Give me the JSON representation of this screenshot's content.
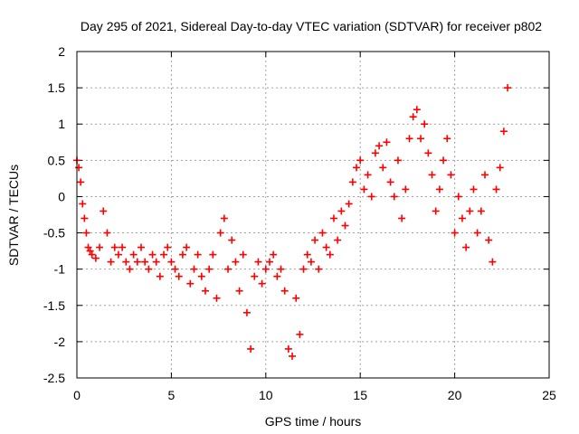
{
  "chart_data": {
    "type": "scatter",
    "title": "Day 295 of 2021, Sidereal Day-to-day VTEC variation (SDTVAR) for receiver p802",
    "xlabel": "GPS time / hours",
    "ylabel": "SDTVAR / TECUs",
    "xlim": [
      0,
      25
    ],
    "ylim": [
      -2.5,
      2
    ],
    "xticks": [
      0,
      5,
      10,
      15,
      20,
      25
    ],
    "yticks": [
      -2.5,
      -2,
      -1.5,
      -1,
      -0.5,
      0,
      0.5,
      1,
      1.5,
      2
    ],
    "xtick_labels": [
      "0",
      "5",
      "10",
      "15",
      "20",
      "25"
    ],
    "ytick_labels": [
      "-2.5",
      "-2",
      "-1.5",
      "-1",
      "-0.5",
      "0",
      "0.5",
      "1",
      "1.5",
      "2"
    ],
    "grid": true,
    "marker": "plus",
    "color": "#ff0000",
    "series": [
      {
        "name": "SDTVAR",
        "x": [
          0.0,
          0.1,
          0.2,
          0.3,
          0.4,
          0.5,
          0.6,
          0.7,
          0.8,
          1.0,
          1.2,
          1.4,
          1.6,
          1.8,
          2.0,
          2.2,
          2.4,
          2.6,
          2.8,
          3.0,
          3.2,
          3.4,
          3.6,
          3.8,
          4.0,
          4.2,
          4.4,
          4.6,
          4.8,
          5.0,
          5.2,
          5.4,
          5.6,
          5.8,
          6.0,
          6.2,
          6.4,
          6.6,
          6.8,
          7.0,
          7.2,
          7.4,
          7.6,
          7.8,
          8.0,
          8.2,
          8.4,
          8.6,
          8.8,
          9.0,
          9.2,
          9.4,
          9.6,
          9.8,
          10.0,
          10.2,
          10.4,
          10.6,
          10.8,
          11.0,
          11.2,
          11.4,
          11.6,
          11.8,
          12.0,
          12.2,
          12.4,
          12.6,
          12.8,
          13.0,
          13.2,
          13.4,
          13.6,
          13.8,
          14.0,
          14.2,
          14.4,
          14.6,
          14.8,
          15.0,
          15.2,
          15.4,
          15.6,
          15.8,
          16.0,
          16.2,
          16.4,
          16.6,
          16.8,
          17.0,
          17.2,
          17.4,
          17.6,
          17.8,
          18.0,
          18.2,
          18.4,
          18.6,
          18.8,
          19.0,
          19.2,
          19.4,
          19.6,
          19.8,
          20.0,
          20.2,
          20.4,
          20.6,
          20.8,
          21.0,
          21.2,
          21.4,
          21.6,
          21.8,
          22.0,
          22.2,
          22.4,
          22.6,
          22.8
        ],
        "y": [
          0.5,
          0.4,
          0.2,
          -0.1,
          -0.3,
          -0.5,
          -0.7,
          -0.75,
          -0.8,
          -0.85,
          -0.7,
          -0.2,
          -0.5,
          -0.9,
          -0.7,
          -0.8,
          -0.7,
          -0.9,
          -1.0,
          -0.8,
          -0.9,
          -0.7,
          -0.9,
          -1.0,
          -0.8,
          -0.9,
          -1.1,
          -0.8,
          -0.7,
          -0.9,
          -1.0,
          -1.1,
          -0.8,
          -0.7,
          -1.2,
          -1.0,
          -0.8,
          -1.1,
          -1.3,
          -1.0,
          -0.8,
          -1.4,
          -0.5,
          -0.3,
          -1.0,
          -0.6,
          -0.9,
          -1.3,
          -0.8,
          -1.6,
          -2.1,
          -1.1,
          -0.9,
          -1.2,
          -1.0,
          -0.9,
          -0.8,
          -1.1,
          -1.0,
          -1.3,
          -2.1,
          -2.2,
          -1.4,
          -1.9,
          -1.0,
          -0.8,
          -0.9,
          -0.6,
          -1.0,
          -0.5,
          -0.7,
          -0.8,
          -0.3,
          -0.6,
          -0.2,
          -0.4,
          -0.1,
          0.2,
          0.4,
          0.5,
          0.1,
          0.3,
          0.0,
          0.6,
          0.7,
          0.4,
          0.75,
          0.2,
          0.0,
          0.5,
          -0.3,
          0.1,
          0.8,
          1.1,
          1.2,
          0.8,
          1.0,
          0.6,
          0.3,
          -0.2,
          0.1,
          0.5,
          0.8,
          0.3,
          -0.5,
          0.0,
          -0.3,
          -0.7,
          -0.2,
          0.1,
          -0.5,
          -0.2,
          0.3,
          -0.6,
          -0.9,
          0.1,
          0.4,
          0.9,
          1.5
        ]
      }
    ]
  }
}
